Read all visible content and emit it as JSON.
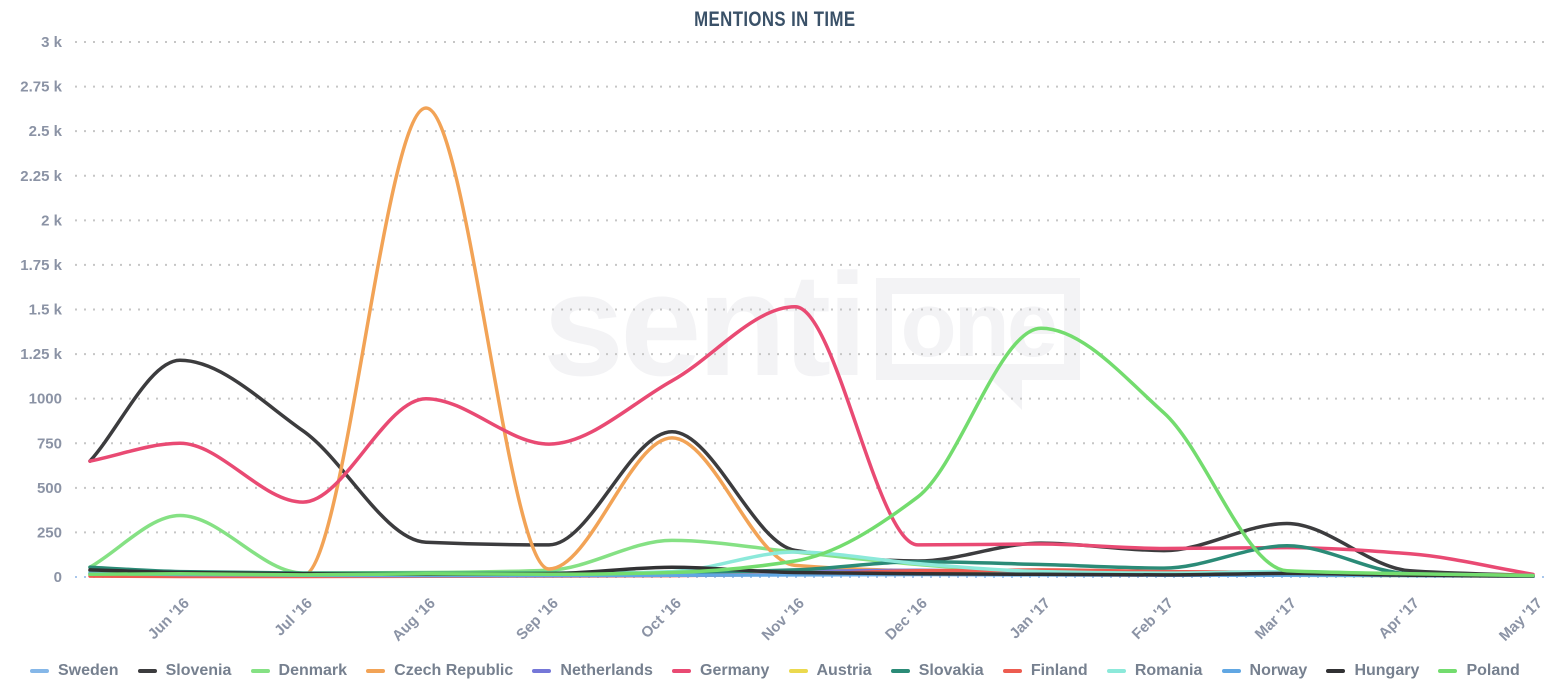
{
  "title": "MENTIONS IN TIME",
  "watermark": {
    "part1": "senti",
    "part2": "one"
  },
  "chart_data": {
    "type": "line",
    "title": "MENTIONS IN TIME",
    "xlabel": "",
    "ylabel": "",
    "ylim": [
      0,
      3000
    ],
    "grid": "horizontal dotted",
    "legend_position": "bottom",
    "zero_line_color": "#a9c7ec",
    "grid_color": "#c6c6c6",
    "axis_label_color": "#8b93a5",
    "y_tick_values": [
      0,
      250,
      500,
      750,
      1000,
      1250,
      1500,
      1750,
      2000,
      2250,
      2500,
      2750,
      3000
    ],
    "y_tick_labels": [
      "0",
      "250",
      "500",
      "750",
      "1000",
      "1.25 k",
      "1.5 k",
      "1.75 k",
      "2 k",
      "2.25 k",
      "2.5 k",
      "2.75 k",
      "3 k"
    ],
    "categories": [
      "Jun '16",
      "Jul '16",
      "Aug '16",
      "Sep '16",
      "Oct '16",
      "Nov '16",
      "Dec '16",
      "Jan '17",
      "Feb '17",
      "Mar '17",
      "Apr '17",
      "May '17"
    ],
    "series_note": "start = value at left chart edge (mid-May '16), values = monthly points Jun '16 .. May '17",
    "series": [
      {
        "name": "Sweden",
        "color": "#85b7e8",
        "start": 35,
        "values": [
          28,
          20,
          16,
          15,
          15,
          18,
          20,
          18,
          15,
          15,
          12,
          8
        ]
      },
      {
        "name": "Slovenia",
        "color": "#3c3c3e",
        "start": 650,
        "values": [
          1215,
          820,
          195,
          180,
          815,
          150,
          90,
          190,
          148,
          300,
          35,
          8
        ]
      },
      {
        "name": "Denmark",
        "color": "#85e184",
        "start": 55,
        "values": [
          345,
          22,
          25,
          38,
          205,
          140,
          70,
          25,
          18,
          28,
          15,
          8
        ]
      },
      {
        "name": "Czech Republic",
        "color": "#f2a356",
        "start": 35,
        "values": [
          28,
          8,
          2630,
          45,
          780,
          65,
          35,
          28,
          22,
          18,
          14,
          10
        ]
      },
      {
        "name": "Netherlands",
        "color": "#7577d8",
        "start": 18,
        "values": [
          14,
          12,
          12,
          14,
          16,
          30,
          38,
          22,
          15,
          12,
          10,
          6
        ]
      },
      {
        "name": "Germany",
        "color": "#e94a73",
        "start": 650,
        "values": [
          750,
          420,
          1000,
          745,
          1100,
          1515,
          180,
          185,
          160,
          165,
          130,
          15
        ]
      },
      {
        "name": "Austria",
        "color": "#ebd94e",
        "start": 12,
        "values": [
          10,
          8,
          10,
          12,
          14,
          25,
          20,
          15,
          12,
          10,
          8,
          5
        ]
      },
      {
        "name": "Slovakia",
        "color": "#2b8b77",
        "start": 55,
        "values": [
          30,
          22,
          20,
          22,
          25,
          40,
          85,
          70,
          50,
          175,
          18,
          8
        ]
      },
      {
        "name": "Finland",
        "color": "#ed5c50",
        "start": 5,
        "values": [
          3,
          3,
          4,
          5,
          8,
          15,
          35,
          40,
          30,
          25,
          15,
          6
        ]
      },
      {
        "name": "Romania",
        "color": "#8ce9da",
        "start": 28,
        "values": [
          18,
          14,
          12,
          15,
          30,
          140,
          75,
          30,
          22,
          30,
          15,
          8
        ]
      },
      {
        "name": "Norway",
        "color": "#61a7e3",
        "start": 20,
        "values": [
          14,
          10,
          8,
          8,
          10,
          12,
          14,
          12,
          10,
          10,
          8,
          5
        ]
      },
      {
        "name": "Hungary",
        "color": "#313133",
        "start": 40,
        "values": [
          25,
          18,
          15,
          18,
          55,
          25,
          18,
          15,
          12,
          20,
          10,
          5
        ]
      },
      {
        "name": "Poland",
        "color": "#73dc6e",
        "start": 15,
        "values": [
          18,
          12,
          18,
          15,
          25,
          90,
          450,
          1395,
          920,
          35,
          18,
          8
        ]
      }
    ]
  }
}
